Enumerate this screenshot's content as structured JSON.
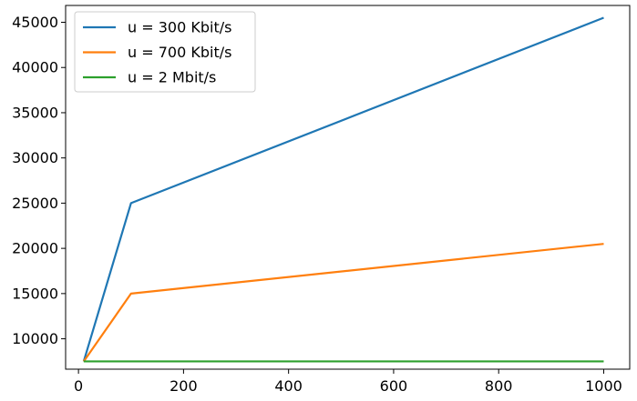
{
  "chart_data": {
    "type": "line",
    "title": "",
    "xlabel": "",
    "ylabel": "",
    "xlim": [
      -24.5,
      1049.5
    ],
    "ylim": [
      6640,
      46860
    ],
    "xticks": [
      0,
      200,
      400,
      600,
      800,
      1000
    ],
    "yticks": [
      10000,
      15000,
      20000,
      25000,
      30000,
      35000,
      40000,
      45000
    ],
    "grid": false,
    "legend_position": "upper left",
    "series": [
      {
        "name": "u = 300 Kbit/s",
        "color": "#1f77b4",
        "x": [
          10,
          100,
          1000
        ],
        "y": [
          7500,
          25000,
          45500
        ]
      },
      {
        "name": "u = 700 Kbit/s",
        "color": "#ff7f0e",
        "x": [
          10,
          100,
          1000
        ],
        "y": [
          7500,
          15000,
          20500
        ]
      },
      {
        "name": "u = 2 Mbit/s",
        "color": "#2ca02c",
        "x": [
          10,
          100,
          1000
        ],
        "y": [
          7500,
          7500,
          7500
        ]
      }
    ]
  }
}
